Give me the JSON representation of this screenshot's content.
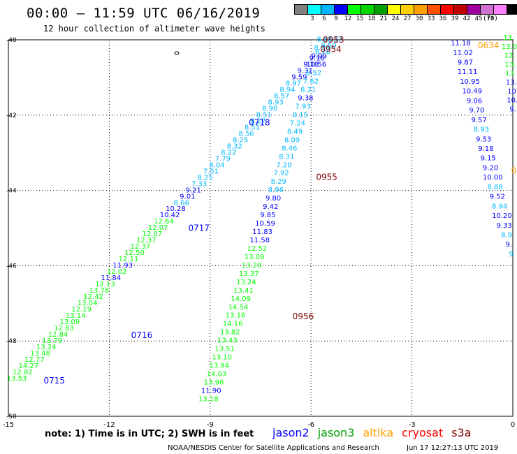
{
  "title": "00:00 – 11:59 UTC 06/16/2019",
  "subtitle": "12 hour collection of altimeter wave heights",
  "legend": {
    "colors": [
      "#808080",
      "#00ffff",
      "#00b7ff",
      "#0000ff",
      "#00ff00",
      "#00d400",
      "#00a000",
      "#ffff00",
      "#ffd000",
      "#ffa000",
      "#ff5000",
      "#ff0000",
      "#c00000",
      "#a000a0",
      "#d070d0",
      "#ff80ff",
      "#000000"
    ],
    "labels": [
      "3",
      "6",
      "9",
      "12",
      "15",
      "18",
      "21",
      "24",
      "27",
      "30",
      "33",
      "36",
      "39",
      "42",
      "45",
      "70",
      "(ft)"
    ]
  },
  "note": "note:  1) Time is in UTC;  2) SWH is in feet",
  "satellites": [
    {
      "name": "jason2",
      "color": "#0000ff"
    },
    {
      "name": "jason3",
      "color": "#00a000"
    },
    {
      "name": "altika",
      "color": "#ffa000"
    },
    {
      "name": "cryosat",
      "color": "#ff0000"
    },
    {
      "name": "s3a",
      "color": "#800000"
    }
  ],
  "credit": "NOAA/NESDIS Center for Satellite Applications and Research",
  "stamp": "Jun 17 12:27:13 UTC 2019",
  "map": {
    "xlim": [
      -15,
      0
    ],
    "ylim": [
      -50,
      -40
    ],
    "xticks": [
      {
        "v": -15,
        "label": "-15"
      },
      {
        "v": -12,
        "label": "-12"
      },
      {
        "v": -9,
        "label": "-9"
      },
      {
        "v": -6,
        "label": "-6"
      },
      {
        "v": -3,
        "label": "-3"
      },
      {
        "v": 0,
        "label": "0"
      }
    ],
    "yticks": [
      {
        "v": -40,
        "label": "-40"
      },
      {
        "v": -42,
        "label": "-42"
      },
      {
        "v": -44,
        "label": "-44"
      },
      {
        "v": -46,
        "label": "-46"
      },
      {
        "v": -48,
        "label": "-48"
      },
      {
        "v": -50,
        "label": "-50"
      }
    ],
    "time_labels": [
      {
        "text": "0953",
        "lon": -5.65,
        "lat": -40.0,
        "color": "#800000"
      },
      {
        "text": "0954",
        "lon": -5.73,
        "lat": -40.25,
        "color": "#800000"
      },
      {
        "text": "0955",
        "lon": -5.85,
        "lat": -43.65,
        "color": "#800000"
      },
      {
        "text": "0956",
        "lon": -6.55,
        "lat": -47.35,
        "color": "#800000"
      },
      {
        "text": "0718",
        "lon": -7.85,
        "lat": -42.2,
        "color": "#0000ff"
      },
      {
        "text": "0717",
        "lon": -9.65,
        "lat": -45.0,
        "color": "#0000ff"
      },
      {
        "text": "0716",
        "lon": -11.35,
        "lat": -47.85,
        "color": "#0000ff"
      },
      {
        "text": "0715",
        "lon": -13.95,
        "lat": -49.05,
        "color": "#0000ff"
      },
      {
        "text": "0634",
        "lon": -1.04,
        "lat": -40.15,
        "color": "#ffa000"
      }
    ],
    "track_a": [
      {
        "v": "7.37",
        "c": "#00b7ff"
      },
      {
        "v": "8.50",
        "c": "#00b7ff"
      },
      {
        "v": "8.28",
        "c": "#00b7ff"
      },
      {
        "v": "9.16",
        "c": "#0000ff"
      },
      {
        "v": "9.18",
        "c": "#0000ff"
      },
      {
        "v": "9.31",
        "c": "#0000ff"
      },
      {
        "v": "9.59",
        "c": "#0000ff"
      },
      {
        "v": "8.97",
        "c": "#00b7ff"
      },
      {
        "v": "8.94",
        "c": "#00b7ff"
      },
      {
        "v": "8.57",
        "c": "#00b7ff"
      },
      {
        "v": "8.93",
        "c": "#00b7ff"
      },
      {
        "v": "8.90",
        "c": "#00b7ff"
      },
      {
        "v": "8.51",
        "c": "#00b7ff"
      },
      {
        "v": "8.27",
        "c": "#00b7ff"
      },
      {
        "v": "8.51",
        "c": "#00b7ff"
      },
      {
        "v": "8.56",
        "c": "#00b7ff"
      },
      {
        "v": "8.25",
        "c": "#00b7ff"
      },
      {
        "v": "8.32",
        "c": "#00b7ff"
      },
      {
        "v": "8.22",
        "c": "#00b7ff"
      },
      {
        "v": "7.79",
        "c": "#00b7ff"
      },
      {
        "v": "8.04",
        "c": "#00b7ff"
      },
      {
        "v": "7.51",
        "c": "#00b7ff"
      },
      {
        "v": "8.25",
        "c": "#00b7ff"
      },
      {
        "v": "7.33",
        "c": "#00b7ff"
      },
      {
        "v": "9.21",
        "c": "#0000ff"
      },
      {
        "v": "9.01",
        "c": "#0000ff"
      },
      {
        "v": "8.66",
        "c": "#00b7ff"
      },
      {
        "v": "10.28",
        "c": "#0000ff"
      },
      {
        "v": "10.42",
        "c": "#0000ff"
      },
      {
        "v": "12.64",
        "c": "#00ff00"
      },
      {
        "v": "12.07",
        "c": "#00ff00"
      },
      {
        "v": "12.07",
        "c": "#00ff00"
      },
      {
        "v": "12.37",
        "c": "#00ff00"
      },
      {
        "v": "12.37",
        "c": "#00ff00"
      },
      {
        "v": "12.50",
        "c": "#00ff00"
      },
      {
        "v": "12.11",
        "c": "#00ff00"
      },
      {
        "v": "11.93",
        "c": "#0000ff"
      },
      {
        "v": "12.02",
        "c": "#00ff00"
      },
      {
        "v": "11.84",
        "c": "#0000ff"
      },
      {
        "v": "12.13",
        "c": "#00ff00"
      },
      {
        "v": "13.76",
        "c": "#00ff00"
      },
      {
        "v": "12.42",
        "c": "#00ff00"
      },
      {
        "v": "13.04",
        "c": "#00ff00"
      },
      {
        "v": "12.19",
        "c": "#00ff00"
      },
      {
        "v": "13.14",
        "c": "#00ff00"
      },
      {
        "v": "13.09",
        "c": "#00ff00"
      },
      {
        "v": "12.83",
        "c": "#00ff00"
      },
      {
        "v": "12.84",
        "c": "#00ff00"
      },
      {
        "v": "13.79",
        "c": "#00ff00"
      },
      {
        "v": "13.24",
        "c": "#00ff00"
      },
      {
        "v": "13.48",
        "c": "#00ff00"
      },
      {
        "v": "12.77",
        "c": "#00ff00"
      },
      {
        "v": "14.27",
        "c": "#00ff00"
      },
      {
        "v": "12.82",
        "c": "#00ff00"
      },
      {
        "v": "13.53",
        "c": "#00ff00"
      }
    ],
    "track_b": [
      {
        "v": "8.83",
        "c": "#00b7ff"
      },
      {
        "v": "8.79",
        "c": "#00b7ff"
      },
      {
        "v": "9.99",
        "c": "#0000ff"
      },
      {
        "v": "10.56",
        "c": "#0000ff"
      },
      {
        "v": "8.52",
        "c": "#00b7ff"
      },
      {
        "v": "7.62",
        "c": "#00b7ff"
      },
      {
        "v": "8.21",
        "c": "#00b7ff"
      },
      {
        "v": "9.38",
        "c": "#0000ff"
      },
      {
        "v": "7.93",
        "c": "#00b7ff"
      },
      {
        "v": "8.15",
        "c": "#00b7ff"
      },
      {
        "v": "7.24",
        "c": "#00b7ff"
      },
      {
        "v": "8.49",
        "c": "#00b7ff"
      },
      {
        "v": "8.09",
        "c": "#00b7ff"
      },
      {
        "v": "8.46",
        "c": "#00b7ff"
      },
      {
        "v": "8.31",
        "c": "#00b7ff"
      },
      {
        "v": "7.20",
        "c": "#00b7ff"
      },
      {
        "v": "7.92",
        "c": "#00b7ff"
      },
      {
        "v": "8.29",
        "c": "#00b7ff"
      },
      {
        "v": "8.96",
        "c": "#00b7ff"
      },
      {
        "v": "9.80",
        "c": "#0000ff"
      },
      {
        "v": "9.42",
        "c": "#0000ff"
      },
      {
        "v": "9.85",
        "c": "#0000ff"
      },
      {
        "v": "10.59",
        "c": "#0000ff"
      },
      {
        "v": "11.83",
        "c": "#0000ff"
      },
      {
        "v": "11.58",
        "c": "#0000ff"
      },
      {
        "v": "12.52",
        "c": "#00ff00"
      },
      {
        "v": "13.09",
        "c": "#00ff00"
      },
      {
        "v": "13.20",
        "c": "#00ff00"
      },
      {
        "v": "13.37",
        "c": "#00ff00"
      },
      {
        "v": "13.24",
        "c": "#00ff00"
      },
      {
        "v": "13.41",
        "c": "#00ff00"
      },
      {
        "v": "14.09",
        "c": "#00ff00"
      },
      {
        "v": "14.54",
        "c": "#00ff00"
      },
      {
        "v": "13.16",
        "c": "#00ff00"
      },
      {
        "v": "14.16",
        "c": "#00ff00"
      },
      {
        "v": "13.82",
        "c": "#00ff00"
      },
      {
        "v": "13.43",
        "c": "#00ff00"
      },
      {
        "v": "13.51",
        "c": "#00ff00"
      },
      {
        "v": "13.10",
        "c": "#00ff00"
      },
      {
        "v": "13.94",
        "c": "#00ff00"
      },
      {
        "v": "14.03",
        "c": "#00ff00"
      },
      {
        "v": "13.96",
        "c": "#00ff00"
      },
      {
        "v": "11.90",
        "c": "#0000ff"
      },
      {
        "v": "13.18",
        "c": "#00ff00"
      }
    ],
    "track_c": [
      {
        "v": "11.18",
        "c": "#0000ff"
      },
      {
        "v": "11.02",
        "c": "#0000ff"
      },
      {
        "v": "9.87",
        "c": "#0000ff"
      },
      {
        "v": "11.11",
        "c": "#0000ff"
      },
      {
        "v": "10.95",
        "c": "#0000ff"
      },
      {
        "v": "10.49",
        "c": "#0000ff"
      },
      {
        "v": "9.06",
        "c": "#0000ff"
      },
      {
        "v": "9.70",
        "c": "#0000ff"
      },
      {
        "v": "9.57",
        "c": "#0000ff"
      },
      {
        "v": "8.93",
        "c": "#00b7ff"
      },
      {
        "v": "9.53",
        "c": "#0000ff"
      },
      {
        "v": "9.18",
        "c": "#0000ff"
      },
      {
        "v": "9.15",
        "c": "#0000ff"
      },
      {
        "v": "9.20",
        "c": "#0000ff"
      },
      {
        "v": "10.00",
        "c": "#0000ff"
      },
      {
        "v": "8.88",
        "c": "#00b7ff"
      },
      {
        "v": "9.52",
        "c": "#0000ff"
      },
      {
        "v": "8.94",
        "c": "#00b7ff"
      },
      {
        "v": "10.20",
        "c": "#0000ff"
      },
      {
        "v": "9.33",
        "c": "#0000ff"
      },
      {
        "v": "8.9",
        "c": "#00b7ff"
      },
      {
        "v": "9.",
        "c": "#0000ff"
      },
      {
        "v": "9",
        "c": "#00b7ff"
      }
    ],
    "track_d": [
      {
        "v": "13.",
        "c": "#00ff00"
      },
      {
        "v": "13.0",
        "c": "#00ff00"
      },
      {
        "v": "12.",
        "c": "#00ff00"
      },
      {
        "v": "13.",
        "c": "#00ff00"
      },
      {
        "v": "13.",
        "c": "#00ff00"
      },
      {
        "v": "13.",
        "c": "#0000ff"
      },
      {
        "v": "10",
        "c": "#0000ff"
      },
      {
        "v": "10.",
        "c": "#0000ff"
      },
      {
        "v": "9.",
        "c": "#0000ff"
      }
    ],
    "edge_mark": {
      "text": "0",
      "lon": -0.05,
      "lat": -43.55,
      "color": "#ffa000"
    }
  }
}
